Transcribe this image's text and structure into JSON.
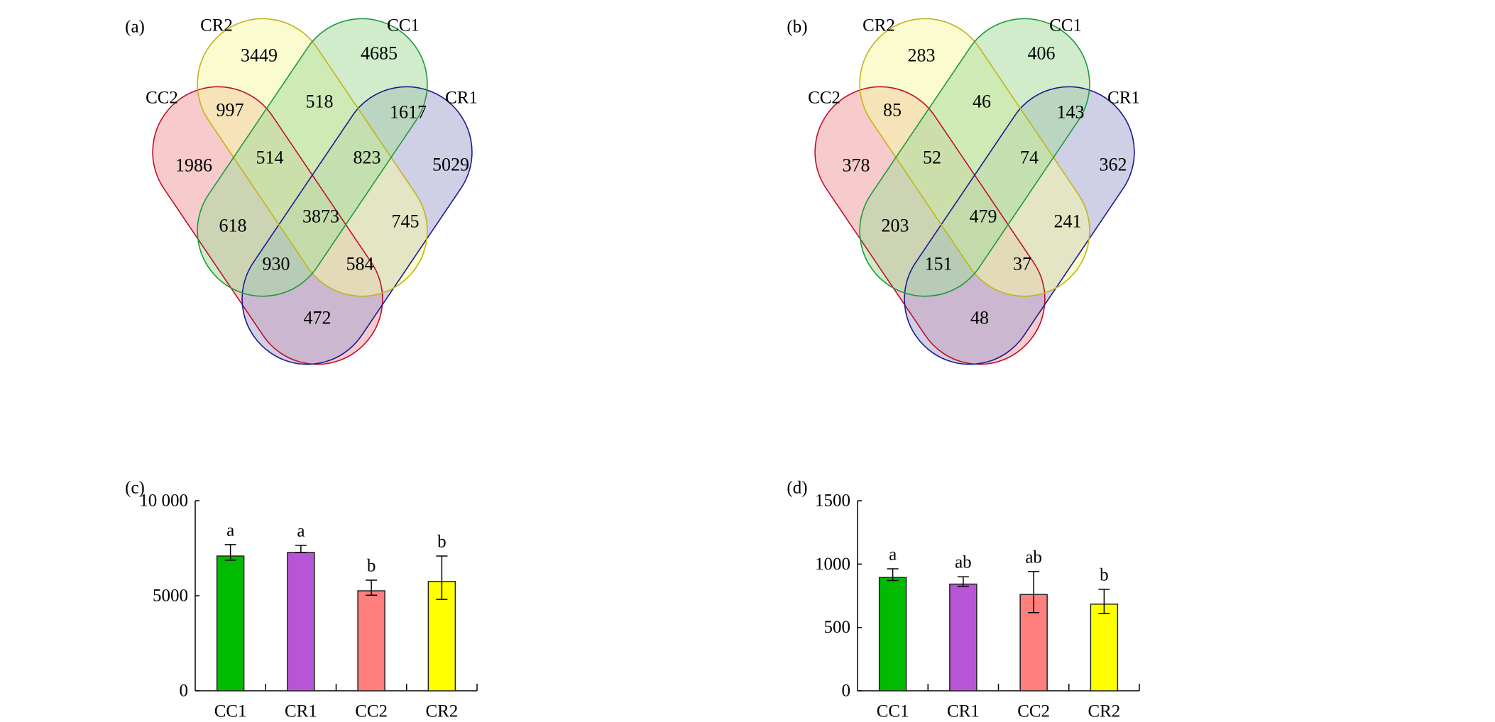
{
  "chart_data": [
    {
      "panel": "(a)",
      "type": "venn",
      "sets": [
        {
          "name": "CR2",
          "fill": "#f5f7a8",
          "stroke": "#c3b31a"
        },
        {
          "name": "CC1",
          "fill": "#a9dca0",
          "stroke": "#1e9a3e"
        },
        {
          "name": "CC2",
          "fill": "#f19ea3",
          "stroke": "#c0102a"
        },
        {
          "name": "CR1",
          "fill": "#a8a8d2",
          "stroke": "#1c1a8e"
        }
      ],
      "regions": [
        {
          "sets": [
            "CR2"
          ],
          "value": 3449
        },
        {
          "sets": [
            "CC1"
          ],
          "value": 4685
        },
        {
          "sets": [
            "CC2",
            "CR2"
          ],
          "value": 997
        },
        {
          "sets": [
            "CR2",
            "CC1"
          ],
          "value": 518
        },
        {
          "sets": [
            "CC1",
            "CR1"
          ],
          "value": 1617
        },
        {
          "sets": [
            "CC2"
          ],
          "value": 1986
        },
        {
          "sets": [
            "CC2",
            "CR2",
            "CC1"
          ],
          "value": 514
        },
        {
          "sets": [
            "CR2",
            "CC1",
            "CR1"
          ],
          "value": 823
        },
        {
          "sets": [
            "CR1"
          ],
          "value": 5029
        },
        {
          "sets": [
            "CC2",
            "CC1"
          ],
          "value": 618
        },
        {
          "sets": [
            "CC2",
            "CR2",
            "CC1",
            "CR1"
          ],
          "value": 3873
        },
        {
          "sets": [
            "CR2",
            "CR1"
          ],
          "value": 745
        },
        {
          "sets": [
            "CC2",
            "CC1",
            "CR1"
          ],
          "value": 930
        },
        {
          "sets": [
            "CC2",
            "CR2",
            "CR1"
          ],
          "value": 584
        },
        {
          "sets": [
            "CC2",
            "CR1"
          ],
          "value": 472
        }
      ]
    },
    {
      "panel": "(b)",
      "type": "venn",
      "sets": [
        {
          "name": "CR2",
          "fill": "#f5f7a8",
          "stroke": "#c3b31a"
        },
        {
          "name": "CC1",
          "fill": "#a9dca0",
          "stroke": "#1e9a3e"
        },
        {
          "name": "CC2",
          "fill": "#f19ea3",
          "stroke": "#c0102a"
        },
        {
          "name": "CR1",
          "fill": "#a8a8d2",
          "stroke": "#1c1a8e"
        }
      ],
      "regions": [
        {
          "sets": [
            "CR2"
          ],
          "value": 283
        },
        {
          "sets": [
            "CC1"
          ],
          "value": 406
        },
        {
          "sets": [
            "CC2",
            "CR2"
          ],
          "value": 85
        },
        {
          "sets": [
            "CR2",
            "CC1"
          ],
          "value": 46
        },
        {
          "sets": [
            "CC1",
            "CR1"
          ],
          "value": 143
        },
        {
          "sets": [
            "CC2"
          ],
          "value": 378
        },
        {
          "sets": [
            "CC2",
            "CR2",
            "CC1"
          ],
          "value": 52
        },
        {
          "sets": [
            "CR2",
            "CC1",
            "CR1"
          ],
          "value": 74
        },
        {
          "sets": [
            "CR1"
          ],
          "value": 362
        },
        {
          "sets": [
            "CC2",
            "CC1"
          ],
          "value": 203
        },
        {
          "sets": [
            "CC2",
            "CR2",
            "CC1",
            "CR1"
          ],
          "value": 479
        },
        {
          "sets": [
            "CR2",
            "CR1"
          ],
          "value": 241
        },
        {
          "sets": [
            "CC2",
            "CC1",
            "CR1"
          ],
          "value": 151
        },
        {
          "sets": [
            "CC2",
            "CR2",
            "CR1"
          ],
          "value": 37
        },
        {
          "sets": [
            "CC2",
            "CR1"
          ],
          "value": 48
        }
      ]
    },
    {
      "panel": "(c)",
      "type": "bar",
      "categories": [
        "CC1",
        "CR1",
        "CC2",
        "CR2"
      ],
      "values": [
        7090,
        7280,
        5260,
        5750
      ],
      "error_upper": [
        7690,
        7650,
        5820,
        7090
      ],
      "error_lower": [
        6870,
        7280,
        5030,
        4810
      ],
      "significance": [
        "a",
        "a",
        "b",
        "b"
      ],
      "colors": [
        "#00bb00",
        "#b855d6",
        "#ff7f7f",
        "#ffff00"
      ],
      "yticks": [
        0,
        5000,
        10000
      ],
      "ytick_labels": [
        "0",
        "5000",
        "10 000"
      ],
      "ylim": [
        0,
        10000
      ],
      "xlabel": "",
      "ylabel": "",
      "title": ""
    },
    {
      "panel": "(d)",
      "type": "bar",
      "categories": [
        "CC1",
        "CR1",
        "CC2",
        "CR2"
      ],
      "values": [
        894,
        842,
        760,
        684
      ],
      "error_upper": [
        963,
        900,
        941,
        801
      ],
      "error_lower": [
        870,
        825,
        617,
        609
      ],
      "significance": [
        "a",
        "ab",
        "ab",
        "b"
      ],
      "colors": [
        "#00bb00",
        "#b855d6",
        "#ff7f7f",
        "#ffff00"
      ],
      "yticks": [
        0,
        500,
        1000,
        1500
      ],
      "ytick_labels": [
        "0",
        "500",
        "1000",
        "1500"
      ],
      "ylim": [
        0,
        1500
      ],
      "xlabel": "",
      "ylabel": "",
      "title": ""
    }
  ]
}
